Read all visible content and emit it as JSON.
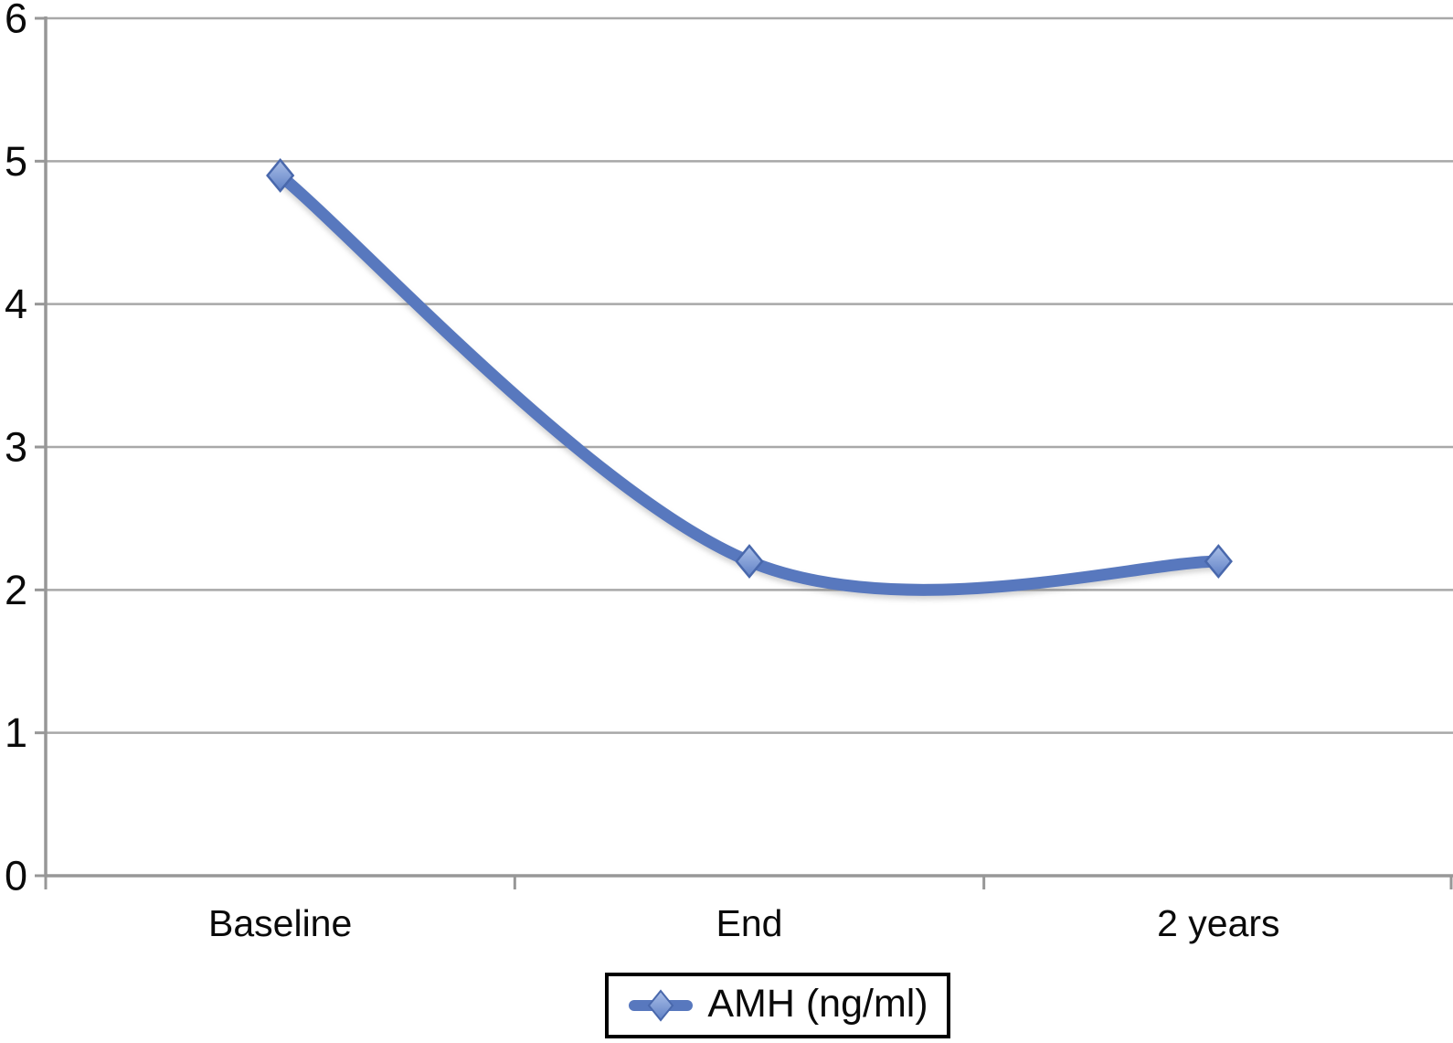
{
  "chart_data": {
    "type": "line",
    "smoothed": true,
    "categories": [
      "Baseline",
      "End",
      "2 years"
    ],
    "series": [
      {
        "name": "AMH (ng/ml)",
        "values": [
          4.9,
          2.2,
          2.2
        ]
      }
    ],
    "title": "",
    "xlabel": "",
    "ylabel": "",
    "ylim": [
      0,
      6
    ],
    "yticks": [
      0,
      1,
      2,
      3,
      4,
      5,
      6
    ],
    "grid": true,
    "legend_position": "bottom-center",
    "marker_shape": "diamond",
    "colors": {
      "line": "#5878be",
      "marker_fill_light": "#aabfe8",
      "marker_fill_dark": "#6081c6",
      "marker_stroke": "#4968ac",
      "gridline": "#a8a8a8",
      "axis": "#979797",
      "text": "#0a0a0a",
      "legend_border": "#000000",
      "background": "#ffffff"
    }
  },
  "legend": {
    "label": "AMH (ng/ml)"
  }
}
